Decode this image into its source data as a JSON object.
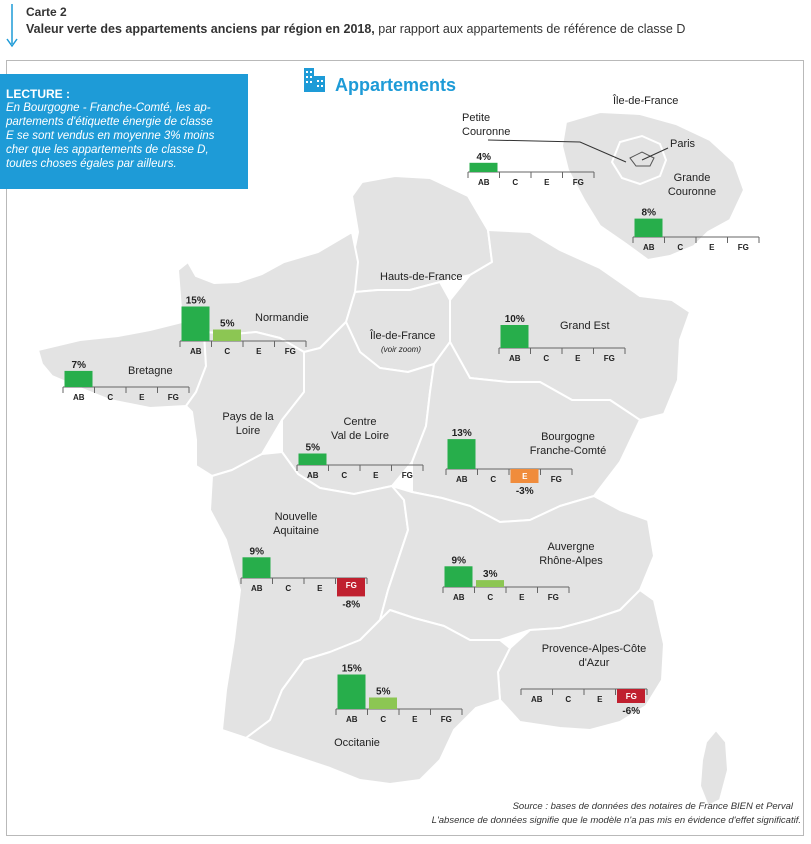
{
  "header": {
    "carte": "Carte 2",
    "title_bold": "Valeur verte des appartements anciens par région en 2018,",
    "title_rest": " par rapport aux appartements de référence de classe D"
  },
  "lecture": {
    "heading": "LECTURE :",
    "lines": [
      "En Bourgogne - Franche-Comté, les ap-",
      "partements d'étiquette énergie de classe",
      "E se sont vendus en moyenne 3% moins",
      "cher que les appartements de classe D,",
      "toutes choses égales par ailleurs."
    ]
  },
  "legend": {
    "label": "Appartements",
    "icon": "building-icon"
  },
  "map_labels": {
    "idf_inset": "Île-de-France",
    "hauts_de_france": "Hauts-de-France",
    "idf_main": "Île-de-France",
    "idf_note": "(voir zoom)",
    "paris": "Paris"
  },
  "source": {
    "line1": "Source : bases de données des notaires de France BIEN et Perval",
    "line2": "L'absence de données signifie que le modèle n'a pas mis en évidence d'effet significatif."
  },
  "colors": {
    "ab": "#27ae4b",
    "c": "#8cc653",
    "e": "#f08c3c",
    "fg": "#c0202f",
    "land": "#e3e3e3",
    "border": "#ffffff",
    "accent": "#1e9bd7"
  },
  "chart_data": {
    "type": "bar",
    "categories": [
      "AB",
      "C",
      "E",
      "FG"
    ],
    "unit": "%",
    "reference": "classe D",
    "regions": [
      {
        "name": "Petite Couronne",
        "values": {
          "AB": 4
        }
      },
      {
        "name": "Grande Couronne",
        "values": {
          "AB": 8
        }
      },
      {
        "name": "Normandie",
        "values": {
          "AB": 15,
          "C": 5
        }
      },
      {
        "name": "Bretagne",
        "values": {
          "AB": 7
        }
      },
      {
        "name": "Grand Est",
        "values": {
          "AB": 10
        }
      },
      {
        "name": "Centre Val de Loire",
        "values": {
          "AB": 5
        }
      },
      {
        "name": "Bourgogne Franche-Comté",
        "values": {
          "AB": 13,
          "E": -3
        }
      },
      {
        "name": "Nouvelle Aquitaine",
        "values": {
          "AB": 9,
          "FG": -8
        }
      },
      {
        "name": "Auvergne Rhône-Alpes",
        "values": {
          "AB": 9,
          "C": 3
        }
      },
      {
        "name": "Provence-Alpes-Côte d'Azur",
        "values": {
          "FG": -6
        }
      },
      {
        "name": "Occitanie",
        "values": {
          "AB": 15,
          "C": 5
        }
      },
      {
        "name": "Pays de la Loire",
        "values": {}
      },
      {
        "name": "Hauts-de-France",
        "values": {}
      }
    ]
  }
}
